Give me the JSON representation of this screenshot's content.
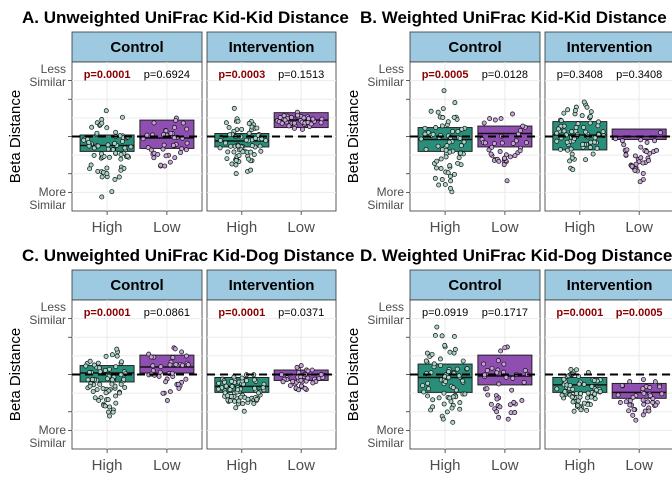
{
  "colors": {
    "high_box": "#2a8f7a",
    "low_box": "#8e4fb0",
    "strip": "#9ecae1",
    "significant_p": "#8b0000",
    "dots": "#a8d5c8",
    "dots_low": "#c9a3dc"
  },
  "shared": {
    "ylabel": "Beta Distance",
    "ytick_top": [
      "Less",
      "Similar"
    ],
    "ytick_bottom": [
      "More",
      "Similar"
    ],
    "groups": [
      "High",
      "Low"
    ]
  },
  "chart_data": [
    {
      "type": "box",
      "title": "A. Unweighted UniFrac Kid-Kid Distance",
      "ylabel": "Beta Distance",
      "reference_line": "dashed horizontal line",
      "facets": [
        {
          "strip": "Control",
          "categories": [
            "High",
            "Low"
          ],
          "pvalues": [
            {
              "label": "p=0.0001",
              "significant": true
            },
            {
              "label": "p=0.6924",
              "significant": false
            }
          ],
          "boxes": [
            {
              "group": "High",
              "q1": 0.4,
              "median": 0.44,
              "q3": 0.51,
              "min": 0.0,
              "max": 0.81
            },
            {
              "group": "Low",
              "q1": 0.42,
              "median": 0.49,
              "q3": 0.61,
              "min": 0.2,
              "max": 0.71
            }
          ]
        },
        {
          "strip": "Intervention",
          "categories": [
            "High",
            "Low"
          ],
          "pvalues": [
            {
              "label": "p=0.0003",
              "significant": true
            },
            {
              "label": "p=0.1513",
              "significant": false
            }
          ],
          "boxes": [
            {
              "group": "High",
              "q1": 0.43,
              "median": 0.47,
              "q3": 0.52,
              "min": 0.18,
              "max": 0.71
            },
            {
              "group": "Low",
              "q1": 0.56,
              "median": 0.61,
              "q3": 0.66,
              "min": 0.54,
              "max": 0.68
            }
          ]
        }
      ]
    },
    {
      "type": "box",
      "title": "B. Weighted UniFrac Kid-Kid Distance",
      "ylabel": "Beta Distance",
      "reference_line": "dashed horizontal line",
      "facets": [
        {
          "strip": "Control",
          "categories": [
            "High",
            "Low"
          ],
          "pvalues": [
            {
              "label": "p=0.0005",
              "significant": true
            },
            {
              "label": "p=0.0128",
              "significant": false
            }
          ],
          "boxes": [
            {
              "group": "High",
              "q1": 0.4,
              "median": 0.48,
              "q3": 0.56,
              "min": 0.03,
              "max": 0.86
            },
            {
              "group": "Low",
              "q1": 0.43,
              "median": 0.52,
              "q3": 0.57,
              "min": 0.16,
              "max": 0.71
            }
          ]
        },
        {
          "strip": "Intervention",
          "categories": [
            "High",
            "Low"
          ],
          "pvalues": [
            {
              "label": "p=0.3408",
              "significant": false
            },
            {
              "label": "p=0.3408",
              "significant": false
            }
          ],
          "boxes": [
            {
              "group": "High",
              "q1": 0.41,
              "median": 0.51,
              "q3": 0.6,
              "min": 0.18,
              "max": 0.84
            },
            {
              "group": "Low",
              "q1": 0.48,
              "median": 0.5,
              "q3": 0.55,
              "min": 0.12,
              "max": 0.6
            }
          ]
        }
      ]
    },
    {
      "type": "box",
      "title": "C. Unweighted UniFrac Kid-Dog Distance",
      "ylabel": "Beta Distance",
      "reference_line": "dashed horizontal line",
      "facets": [
        {
          "strip": "Control",
          "categories": [
            "High",
            "Low"
          ],
          "pvalues": [
            {
              "label": "p=0.0001",
              "significant": true
            },
            {
              "label": "p=0.0861",
              "significant": false
            }
          ],
          "boxes": [
            {
              "group": "High",
              "q1": 0.45,
              "median": 0.51,
              "q3": 0.56,
              "min": 0.12,
              "max": 0.78
            },
            {
              "group": "Low",
              "q1": 0.51,
              "median": 0.55,
              "q3": 0.63,
              "min": 0.28,
              "max": 0.76
            }
          ]
        },
        {
          "strip": "Intervention",
          "categories": [
            "High",
            "Low"
          ],
          "pvalues": [
            {
              "label": "p=0.0001",
              "significant": true
            },
            {
              "label": "p=0.0371",
              "significant": false
            }
          ],
          "boxes": [
            {
              "group": "High",
              "q1": 0.38,
              "median": 0.42,
              "q3": 0.48,
              "min": 0.18,
              "max": 0.55
            },
            {
              "group": "Low",
              "q1": 0.46,
              "median": 0.5,
              "q3": 0.53,
              "min": 0.33,
              "max": 0.59
            }
          ]
        }
      ]
    },
    {
      "type": "box",
      "title": "D. Weighted UniFrac Kid-Dog Distance",
      "ylabel": "Beta Distance",
      "reference_line": "dashed horizontal line",
      "facets": [
        {
          "strip": "Control",
          "categories": [
            "High",
            "Low"
          ],
          "pvalues": [
            {
              "label": "p=0.0919",
              "significant": false
            },
            {
              "label": "p=0.1717",
              "significant": false
            }
          ],
          "boxes": [
            {
              "group": "High",
              "q1": 0.38,
              "median": 0.48,
              "q3": 0.57,
              "min": 0.01,
              "max": 0.89
            },
            {
              "group": "Low",
              "q1": 0.43,
              "median": 0.49,
              "q3": 0.63,
              "min": 0.02,
              "max": 0.83
            }
          ]
        },
        {
          "strip": "Intervention",
          "categories": [
            "High",
            "Low"
          ],
          "pvalues": [
            {
              "label": "p=0.0001",
              "significant": true
            },
            {
              "label": "p=0.0005",
              "significant": true
            }
          ],
          "boxes": [
            {
              "group": "High",
              "q1": 0.38,
              "median": 0.43,
              "q3": 0.48,
              "min": 0.18,
              "max": 0.6
            },
            {
              "group": "Low",
              "q1": 0.34,
              "median": 0.38,
              "q3": 0.44,
              "min": 0.14,
              "max": 0.53
            }
          ]
        }
      ]
    }
  ]
}
